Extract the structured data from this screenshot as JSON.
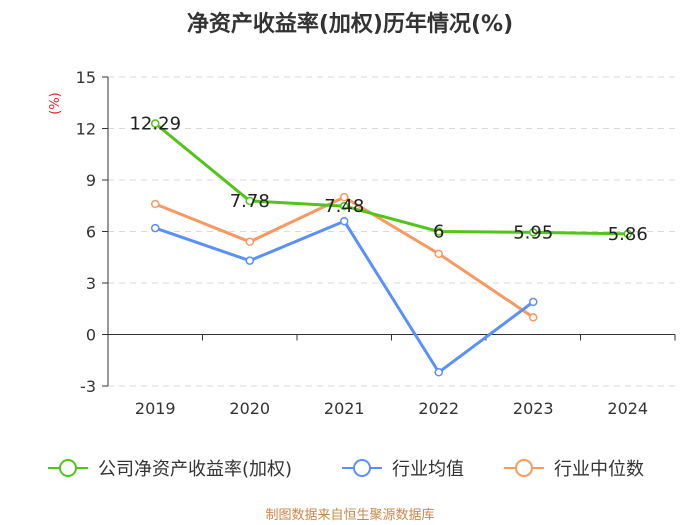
{
  "title": "净资产收益率(加权)历年情况(%)",
  "source": "制图数据来自恒生聚源数据库",
  "chart_data": {
    "type": "line",
    "title": "净资产收益率(加权)历年情况(%)",
    "ylabel": "(%)",
    "xlabel": "",
    "categories": [
      "2019",
      "2020",
      "2021",
      "2022",
      "2023",
      "2024"
    ],
    "ylim": [
      -3,
      15
    ],
    "yticks": [
      15,
      12,
      9,
      6,
      3,
      0,
      -3
    ],
    "grid": true,
    "legend": "bottom",
    "series": [
      {
        "name": "公司净资产收益率(加权)",
        "color": "#52c41a",
        "values": [
          12.29,
          7.78,
          7.48,
          6,
          5.95,
          5.86
        ],
        "labels": [
          "12.29",
          "7.78",
          "7.48",
          "6",
          "5.95",
          "5.86"
        ]
      },
      {
        "name": "行业均值",
        "color": "#5b8ff9",
        "values": [
          6.2,
          4.3,
          6.6,
          -2.2,
          1.9,
          null
        ]
      },
      {
        "name": "行业中位数",
        "color": "#f69a61",
        "values": [
          7.6,
          5.4,
          8.0,
          4.7,
          1.0,
          null
        ]
      }
    ]
  }
}
